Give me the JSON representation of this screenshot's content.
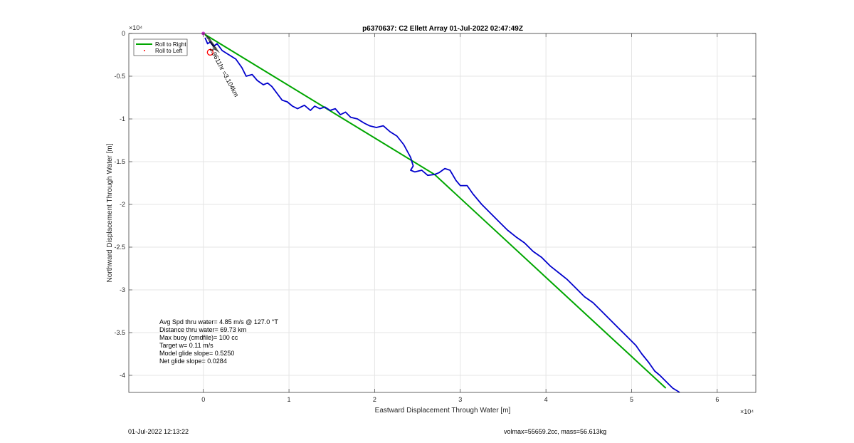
{
  "chart_data": {
    "type": "line",
    "title": "p6370637: C2 Ellett Array 01-Jul-2022 02:47:49Z",
    "xlabel": "Eastward Displacement Through Water [m]",
    "ylabel": "Northward Displacement Through Water [m]",
    "x_exponent_label": "×10⁴",
    "y_exponent_label": "×10⁴",
    "xlim": [
      -0.87,
      6.45
    ],
    "ylim": [
      -4.2,
      0
    ],
    "x_ticks": [
      0,
      1,
      2,
      3,
      4,
      5,
      6
    ],
    "y_ticks": [
      0,
      -0.5,
      -1,
      -1.5,
      -2,
      -2.5,
      -3,
      -3.5,
      -4
    ],
    "grid": true,
    "legend_position": "top-left",
    "legend": [
      "Roll to Right",
      "Roll to Left"
    ],
    "series": [
      {
        "name": "Roll to Right",
        "color": "#00a600",
        "x": [
          0,
          2.7,
          5.4
        ],
        "y": [
          0,
          -1.65,
          -4.15
        ]
      },
      {
        "color": "#0000cc",
        "x": [
          0.02,
          0.05,
          0.08,
          0.12,
          0.16,
          0.22,
          0.3,
          0.38,
          0.45,
          0.5,
          0.57,
          0.63,
          0.7,
          0.75,
          0.8,
          0.86,
          0.92,
          0.98,
          1.04,
          1.1,
          1.18,
          1.25,
          1.3,
          1.36,
          1.42,
          1.48,
          1.54,
          1.6,
          1.66,
          1.72,
          1.8,
          1.88,
          1.94,
          2.02,
          2.1,
          2.18,
          2.26,
          2.34,
          2.42,
          2.45,
          2.42,
          2.47,
          2.55,
          2.62,
          2.7,
          2.75,
          2.82,
          2.88,
          2.95,
          3.0,
          3.08,
          3.15,
          3.25,
          3.35,
          3.45,
          3.55,
          3.65,
          3.75,
          3.85,
          3.95,
          4.05,
          4.15,
          4.25,
          4.35,
          4.45,
          4.55,
          4.65,
          4.75,
          4.85,
          4.95,
          5.05,
          5.12,
          5.2,
          5.27,
          5.33,
          5.38,
          5.43,
          5.48,
          5.53,
          5.56
        ],
        "y": [
          -0.05,
          -0.12,
          -0.1,
          -0.15,
          -0.12,
          -0.2,
          -0.25,
          -0.3,
          -0.4,
          -0.5,
          -0.48,
          -0.55,
          -0.6,
          -0.58,
          -0.62,
          -0.7,
          -0.78,
          -0.8,
          -0.85,
          -0.88,
          -0.84,
          -0.9,
          -0.85,
          -0.88,
          -0.86,
          -0.9,
          -0.88,
          -0.95,
          -0.92,
          -0.98,
          -1.0,
          -1.05,
          -1.08,
          -1.1,
          -1.08,
          -1.15,
          -1.2,
          -1.3,
          -1.45,
          -1.55,
          -1.6,
          -1.62,
          -1.6,
          -1.66,
          -1.65,
          -1.63,
          -1.58,
          -1.6,
          -1.72,
          -1.78,
          -1.78,
          -1.88,
          -2.0,
          -2.1,
          -2.2,
          -2.3,
          -2.38,
          -2.45,
          -2.55,
          -2.62,
          -2.72,
          -2.8,
          -2.88,
          -2.98,
          -3.08,
          -3.15,
          -3.25,
          -3.35,
          -3.45,
          -3.55,
          -3.65,
          -3.75,
          -3.85,
          -3.95,
          -4.0,
          -4.05,
          -4.1,
          -4.15,
          -4.18,
          -4.2
        ]
      },
      {
        "name": "Roll to Left",
        "color": "#ff0000",
        "x": [
          0.08
        ],
        "y": [
          -0.22
        ]
      }
    ],
    "annotation_rotated": "3.9611hr =3.104km",
    "info_lines": [
      "Avg Spd thru water=  4.85 m/s @ 127.0 °T",
      "Distance thru water= 69.73 km",
      "Max buoy (cmdfile)= 100 cc",
      "Target w= 0.11 m/s",
      "Model glide slope= 0.5250",
      "Net glide slope= 0.0284"
    ]
  },
  "footer": {
    "left": "01-Jul-2022 12:13:22",
    "right": "volmax=55659.2cc, mass=56.613kg"
  },
  "colors": {
    "axis": "#262626",
    "grid": "#e5e5e5",
    "blue_track": "#0000cc",
    "green_line": "#00a600",
    "red_marker": "#ff0000"
  }
}
